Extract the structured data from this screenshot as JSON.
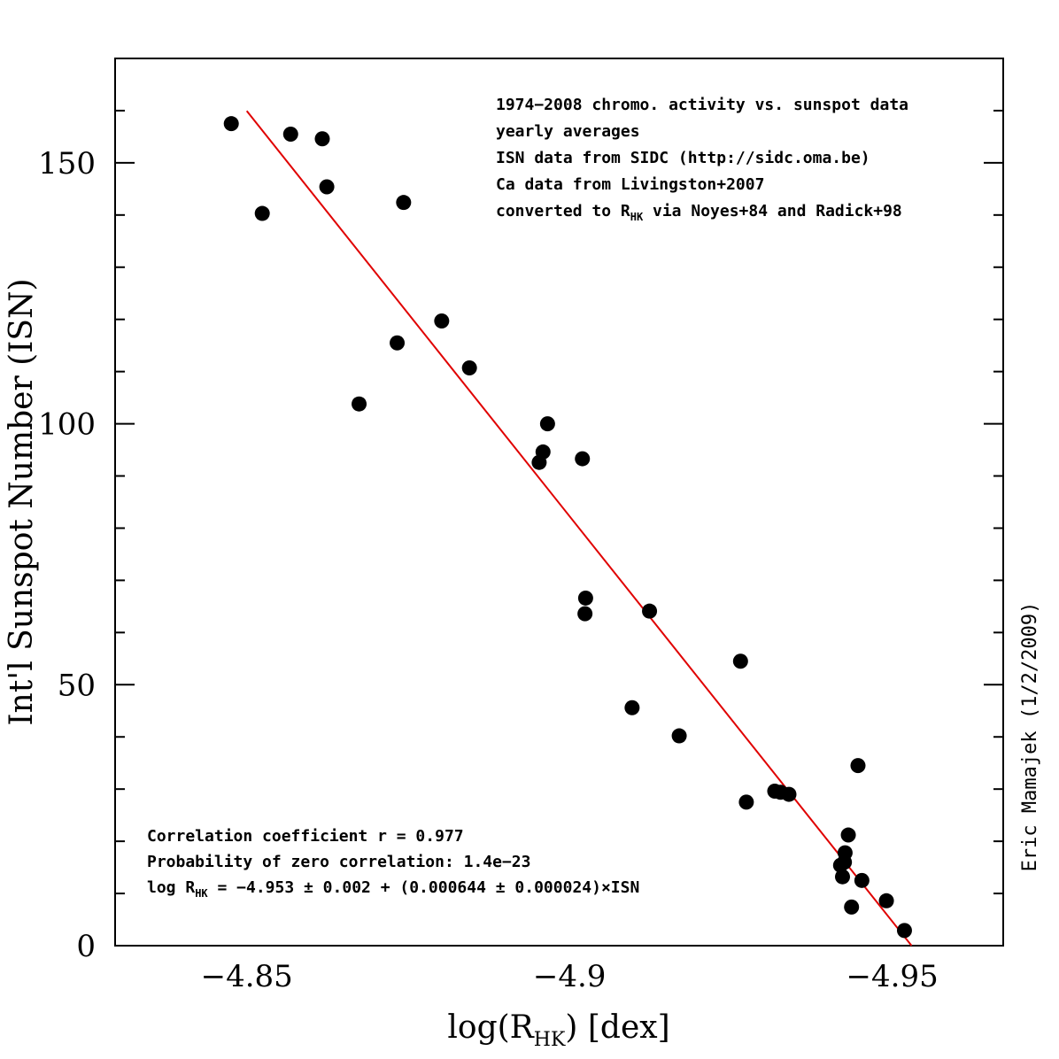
{
  "chart_data": {
    "type": "scatter",
    "xlabel_main": "log(R",
    "xlabel_sub": "HK",
    "xlabel_tail": ") [dex]",
    "ylabel": "Int'l Sunspot Number (ISN)",
    "side_note": "Eric Mamajek (1/2/2009)",
    "xlim": [
      -4.8296,
      -4.9672
    ],
    "ylim": [
      0,
      170
    ],
    "x_axis_reversed": true,
    "x_ticks": [
      -4.85,
      -4.9,
      -4.95
    ],
    "x_tick_labels": [
      "−4.85",
      "−4.9",
      "−4.95"
    ],
    "y_ticks": [
      0,
      50,
      100,
      150
    ],
    "y_tick_labels": [
      "0",
      "50",
      "100",
      "150"
    ],
    "grid": false,
    "notes_top": [
      "1974−2008 chromo. activity vs. sunspot data",
      "yearly averages",
      "ISN data from SIDC (http://sidc.oma.be)",
      "Ca data from Livingston+2007"
    ],
    "note_rhk_pre": "converted to R",
    "note_rhk_sub": "HK",
    "note_rhk_post": " via Noyes+84 and Radick+98",
    "stats_line1": "Correlation coefficient r = 0.977",
    "stats_line2": "Probability of zero correlation: 1.4e−23",
    "stats_line3_pre": "log R",
    "stats_line3_sub": "HK",
    "stats_line3_post": " = −4.953 ± 0.002 + (0.000644 ± 0.000024)×ISN",
    "series": [
      {
        "marker": "filled-circle",
        "color": "#000000",
        "points": [
          [
            -4.8476,
            157.5
          ],
          [
            -4.8524,
            140.3
          ],
          [
            -4.8568,
            155.5
          ],
          [
            -4.8617,
            154.6
          ],
          [
            -4.8624,
            145.4
          ],
          [
            -4.8743,
            142.4
          ],
          [
            -4.8802,
            119.7
          ],
          [
            -4.8733,
            115.5
          ],
          [
            -4.8845,
            110.7
          ],
          [
            -4.8674,
            103.8
          ],
          [
            -4.8966,
            100.0
          ],
          [
            -4.8959,
            94.6
          ],
          [
            -4.8953,
            92.6
          ],
          [
            -4.902,
            93.3
          ],
          [
            -4.9025,
            66.6
          ],
          [
            -4.9024,
            63.6
          ],
          [
            -4.9124,
            64.1
          ],
          [
            -4.9097,
            45.6
          ],
          [
            -4.917,
            40.2
          ],
          [
            -4.9265,
            54.5
          ],
          [
            -4.9274,
            27.5
          ],
          [
            -4.9318,
            29.6
          ],
          [
            -4.9327,
            29.4
          ],
          [
            -4.934,
            29.0
          ],
          [
            -4.9432,
            21.2
          ],
          [
            -4.9427,
            17.8
          ],
          [
            -4.9426,
            16.0
          ],
          [
            -4.942,
            15.4
          ],
          [
            -4.9423,
            13.2
          ],
          [
            -4.9447,
            34.5
          ],
          [
            -4.9453,
            12.5
          ],
          [
            -4.9437,
            7.4
          ],
          [
            -4.9491,
            8.6
          ],
          [
            -4.9519,
            2.9
          ]
        ]
      },
      {
        "name": "",
        "type": "line",
        "color": "#e00000",
        "fit": {
          "intercept": -4.953,
          "slope": 0.000644
        },
        "x_range": [
          -4.85,
          -4.953
        ]
      }
    ]
  }
}
